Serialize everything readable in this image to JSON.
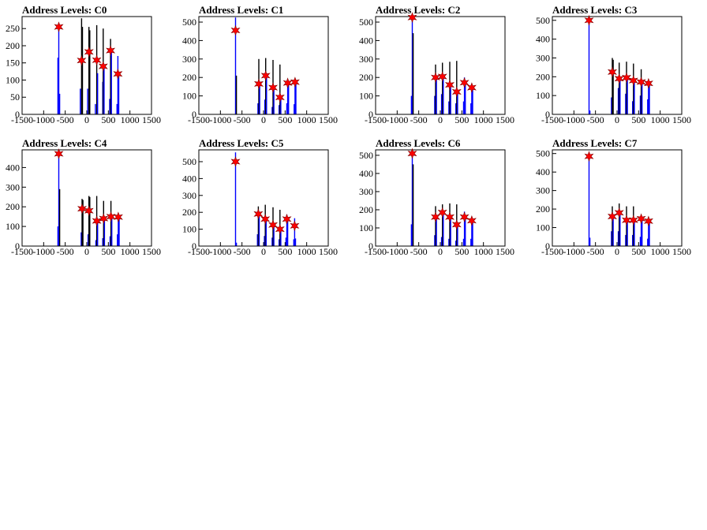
{
  "chart_data": [
    {
      "type": "histogram",
      "title": "Address Levels: C0",
      "ylim": [
        0,
        285
      ],
      "y_ticks": [
        "0",
        "50",
        "100",
        "150",
        "200",
        "250"
      ],
      "x_ticks": [
        "-1500",
        "-1000",
        "-500",
        "0",
        "500",
        "1000",
        "1500"
      ],
      "xlim": [
        -1500,
        1500
      ],
      "peaks": [
        [
          -650,
          255
        ],
        [
          -120,
          157
        ],
        [
          50,
          182
        ],
        [
          230,
          158
        ],
        [
          380,
          140
        ],
        [
          550,
          186
        ],
        [
          720,
          118
        ]
      ],
      "bars": [
        [
          -670,
          165
        ],
        [
          -650,
          255
        ],
        [
          -630,
          60
        ],
        [
          -150,
          75
        ],
        [
          -120,
          280
        ],
        [
          -100,
          255
        ],
        [
          20,
          75
        ],
        [
          50,
          255
        ],
        [
          70,
          245
        ],
        [
          200,
          30
        ],
        [
          230,
          260
        ],
        [
          250,
          120
        ],
        [
          370,
          95
        ],
        [
          380,
          250
        ],
        [
          400,
          140
        ],
        [
          530,
          45
        ],
        [
          550,
          220
        ],
        [
          570,
          185
        ],
        [
          700,
          30
        ],
        [
          720,
          170
        ],
        [
          740,
          115
        ]
      ]
    },
    {
      "type": "histogram",
      "title": "Address Levels: C1",
      "ylim": [
        0,
        530
      ],
      "y_ticks": [
        "0",
        "100",
        "200",
        "300",
        "400",
        "500"
      ],
      "x_ticks": [
        "-1500",
        "-1000",
        "-500",
        "0",
        "500",
        "1000",
        "1500"
      ],
      "xlim": [
        -1500,
        1500
      ],
      "peaks": [
        [
          -650,
          455
        ],
        [
          -110,
          165
        ],
        [
          50,
          210
        ],
        [
          220,
          145
        ],
        [
          380,
          92
        ],
        [
          560,
          170
        ],
        [
          730,
          175
        ]
      ],
      "bars": [
        [
          -650,
          525
        ],
        [
          -630,
          210
        ],
        [
          -130,
          60
        ],
        [
          -110,
          300
        ],
        [
          -90,
          160
        ],
        [
          30,
          80
        ],
        [
          50,
          305
        ],
        [
          70,
          200
        ],
        [
          200,
          40
        ],
        [
          220,
          295
        ],
        [
          240,
          140
        ],
        [
          360,
          50
        ],
        [
          380,
          270
        ],
        [
          400,
          90
        ],
        [
          540,
          60
        ],
        [
          560,
          190
        ],
        [
          580,
          165
        ],
        [
          710,
          55
        ],
        [
          730,
          180
        ],
        [
          750,
          170
        ]
      ]
    },
    {
      "type": "histogram",
      "title": "Address Levels: C2",
      "ylim": [
        0,
        530
      ],
      "y_ticks": [
        "0",
        "100",
        "200",
        "300",
        "400",
        "500"
      ],
      "x_ticks": [
        "-1500",
        "-1000",
        "-500",
        "0",
        "500",
        "1000",
        "1500"
      ],
      "xlim": [
        -1500,
        1500
      ],
      "peaks": [
        [
          -650,
          525
        ],
        [
          -110,
          200
        ],
        [
          50,
          205
        ],
        [
          220,
          160
        ],
        [
          380,
          122
        ],
        [
          560,
          172
        ],
        [
          730,
          145
        ]
      ],
      "bars": [
        [
          -670,
          100
        ],
        [
          -650,
          525
        ],
        [
          -630,
          440
        ],
        [
          -130,
          100
        ],
        [
          -110,
          270
        ],
        [
          -90,
          195
        ],
        [
          30,
          110
        ],
        [
          50,
          280
        ],
        [
          70,
          200
        ],
        [
          200,
          70
        ],
        [
          220,
          285
        ],
        [
          240,
          160
        ],
        [
          360,
          60
        ],
        [
          380,
          290
        ],
        [
          400,
          120
        ],
        [
          540,
          70
        ],
        [
          560,
          200
        ],
        [
          580,
          165
        ],
        [
          710,
          60
        ],
        [
          730,
          150
        ],
        [
          750,
          140
        ]
      ]
    },
    {
      "type": "histogram",
      "title": "Address Levels: C3",
      "ylim": [
        0,
        520
      ],
      "y_ticks": [
        "0",
        "100",
        "200",
        "300",
        "400",
        "500"
      ],
      "x_ticks": [
        "-1500",
        "-1000",
        "-500",
        "0",
        "500",
        "1000",
        "1500"
      ],
      "xlim": [
        -1500,
        1500
      ],
      "peaks": [
        [
          -650,
          500
        ],
        [
          -110,
          225
        ],
        [
          50,
          190
        ],
        [
          220,
          195
        ],
        [
          380,
          180
        ],
        [
          560,
          172
        ],
        [
          730,
          165
        ]
      ],
      "bars": [
        [
          -650,
          515
        ],
        [
          -630,
          20
        ],
        [
          -130,
          90
        ],
        [
          -110,
          300
        ],
        [
          -90,
          290
        ],
        [
          30,
          140
        ],
        [
          50,
          275
        ],
        [
          70,
          185
        ],
        [
          200,
          110
        ],
        [
          220,
          280
        ],
        [
          240,
          190
        ],
        [
          360,
          70
        ],
        [
          380,
          270
        ],
        [
          400,
          170
        ],
        [
          540,
          100
        ],
        [
          560,
          240
        ],
        [
          580,
          165
        ],
        [
          710,
          80
        ],
        [
          730,
          170
        ],
        [
          750,
          160
        ]
      ]
    },
    {
      "type": "histogram",
      "title": "Address Levels: C4",
      "ylim": [
        0,
        490
      ],
      "y_ticks": [
        "0",
        "100",
        "200",
        "300",
        "400"
      ],
      "x_ticks": [
        "-1500",
        "-1000",
        "-500",
        "0",
        "500",
        "1000",
        "1500"
      ],
      "xlim": [
        -1500,
        1500
      ],
      "peaks": [
        [
          -650,
          470
        ],
        [
          -110,
          190
        ],
        [
          50,
          180
        ],
        [
          230,
          128
        ],
        [
          390,
          140
        ],
        [
          560,
          150
        ],
        [
          730,
          148
        ]
      ],
      "bars": [
        [
          -670,
          100
        ],
        [
          -650,
          480
        ],
        [
          -630,
          290
        ],
        [
          -130,
          70
        ],
        [
          -110,
          240
        ],
        [
          -90,
          235
        ],
        [
          30,
          60
        ],
        [
          50,
          255
        ],
        [
          70,
          250
        ],
        [
          210,
          30
        ],
        [
          230,
          255
        ],
        [
          250,
          120
        ],
        [
          370,
          40
        ],
        [
          390,
          230
        ],
        [
          410,
          130
        ],
        [
          540,
          50
        ],
        [
          560,
          230
        ],
        [
          580,
          145
        ],
        [
          710,
          60
        ],
        [
          730,
          150
        ],
        [
          750,
          140
        ]
      ]
    },
    {
      "type": "histogram",
      "title": "Address Levels: C5",
      "ylim": [
        0,
        570
      ],
      "y_ticks": [
        "0",
        "100",
        "200",
        "300",
        "400",
        "500"
      ],
      "x_ticks": [
        "-1500",
        "-1000",
        "-500",
        "0",
        "500",
        "1000",
        "1500"
      ],
      "xlim": [
        -1500,
        1500
      ],
      "peaks": [
        [
          -650,
          500
        ],
        [
          -120,
          190
        ],
        [
          40,
          160
        ],
        [
          220,
          125
        ],
        [
          380,
          100
        ],
        [
          540,
          160
        ],
        [
          720,
          120
        ]
      ],
      "bars": [
        [
          -650,
          555
        ],
        [
          -630,
          20
        ],
        [
          -140,
          70
        ],
        [
          -120,
          235
        ],
        [
          -100,
          190
        ],
        [
          20,
          60
        ],
        [
          40,
          245
        ],
        [
          60,
          160
        ],
        [
          200,
          50
        ],
        [
          220,
          230
        ],
        [
          240,
          120
        ],
        [
          360,
          40
        ],
        [
          380,
          215
        ],
        [
          400,
          95
        ],
        [
          520,
          50
        ],
        [
          540,
          185
        ],
        [
          560,
          150
        ],
        [
          700,
          40
        ],
        [
          720,
          165
        ],
        [
          740,
          45
        ]
      ]
    },
    {
      "type": "histogram",
      "title": "Address Levels: C6",
      "ylim": [
        0,
        530
      ],
      "y_ticks": [
        "0",
        "100",
        "200",
        "300",
        "400",
        "500"
      ],
      "x_ticks": [
        "-1500",
        "-1000",
        "-500",
        "0",
        "500",
        "1000",
        "1500"
      ],
      "xlim": [
        -1500,
        1500
      ],
      "peaks": [
        [
          -650,
          510
        ],
        [
          -110,
          160
        ],
        [
          50,
          185
        ],
        [
          220,
          160
        ],
        [
          380,
          118
        ],
        [
          560,
          160
        ],
        [
          730,
          140
        ]
      ],
      "bars": [
        [
          -670,
          120
        ],
        [
          -650,
          525
        ],
        [
          -630,
          450
        ],
        [
          -130,
          60
        ],
        [
          -110,
          220
        ],
        [
          -90,
          160
        ],
        [
          30,
          50
        ],
        [
          50,
          230
        ],
        [
          70,
          180
        ],
        [
          200,
          40
        ],
        [
          220,
          235
        ],
        [
          240,
          160
        ],
        [
          360,
          30
        ],
        [
          380,
          230
        ],
        [
          400,
          115
        ],
        [
          540,
          40
        ],
        [
          560,
          190
        ],
        [
          580,
          155
        ],
        [
          710,
          40
        ],
        [
          730,
          160
        ],
        [
          750,
          135
        ]
      ]
    },
    {
      "type": "histogram",
      "title": "Address Levels: C7",
      "ylim": [
        0,
        520
      ],
      "y_ticks": [
        "0",
        "100",
        "200",
        "300",
        "400",
        "500"
      ],
      "x_ticks": [
        "-1500",
        "-1000",
        "-500",
        "0",
        "500",
        "1000",
        "1500"
      ],
      "xlim": [
        -1500,
        1500
      ],
      "peaks": [
        [
          -650,
          485
        ],
        [
          -110,
          160
        ],
        [
          50,
          180
        ],
        [
          220,
          140
        ],
        [
          380,
          140
        ],
        [
          560,
          148
        ],
        [
          730,
          135
        ]
      ],
      "bars": [
        [
          -650,
          500
        ],
        [
          -630,
          45
        ],
        [
          -130,
          80
        ],
        [
          -110,
          215
        ],
        [
          -90,
          165
        ],
        [
          30,
          80
        ],
        [
          50,
          230
        ],
        [
          70,
          175
        ],
        [
          200,
          60
        ],
        [
          220,
          215
        ],
        [
          240,
          135
        ],
        [
          360,
          60
        ],
        [
          380,
          215
        ],
        [
          400,
          135
        ],
        [
          540,
          50
        ],
        [
          560,
          160
        ],
        [
          580,
          145
        ],
        [
          710,
          40
        ],
        [
          730,
          140
        ],
        [
          750,
          130
        ]
      ]
    }
  ],
  "colors": {
    "bars": "#0000ff",
    "bars_dark": "#000000",
    "markers": "#ff0000",
    "marker_outline": "#800000",
    "axes": "#000000"
  }
}
